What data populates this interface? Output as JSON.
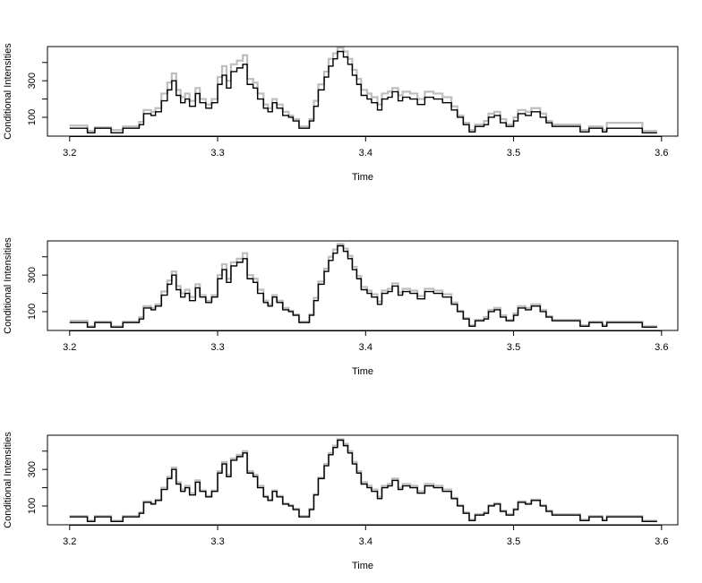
{
  "chart_data": [
    {
      "type": "step",
      "xlabel": "Time",
      "ylabel": "Conditional Intensities",
      "xlim": [
        3.185,
        3.611
      ],
      "ylim": [
        -3,
        487
      ],
      "xticks": [
        3.2,
        3.3,
        3.4,
        3.5,
        3.6
      ],
      "yticks": [
        100,
        300
      ],
      "yticks_minor": [
        200,
        400
      ],
      "x": [
        3.2,
        3.212,
        3.217,
        3.228,
        3.236,
        3.247,
        3.25,
        3.255,
        3.258,
        3.262,
        3.266,
        3.269,
        3.272,
        3.275,
        3.278,
        3.281,
        3.285,
        3.288,
        3.292,
        3.296,
        3.3,
        3.303,
        3.306,
        3.309,
        3.313,
        3.317,
        3.32,
        3.324,
        3.327,
        3.331,
        3.334,
        3.337,
        3.34,
        3.344,
        3.348,
        3.351,
        3.355,
        3.362,
        3.365,
        3.368,
        3.372,
        3.375,
        3.378,
        3.381,
        3.385,
        3.388,
        3.391,
        3.394,
        3.397,
        3.401,
        3.404,
        3.408,
        3.411,
        3.415,
        3.418,
        3.422,
        3.425,
        3.43,
        3.435,
        3.44,
        3.446,
        3.452,
        3.458,
        3.462,
        3.466,
        3.47,
        3.474,
        3.48,
        3.483,
        3.487,
        3.491,
        3.495,
        3.5,
        3.503,
        3.508,
        3.512,
        3.518,
        3.522,
        3.526,
        3.545,
        3.551,
        3.56,
        3.563,
        3.587,
        3.597
      ],
      "series": [
        {
          "color": "#bebebe",
          "values": [
            55,
            25,
            45,
            30,
            50,
            75,
            140,
            130,
            150,
            230,
            290,
            340,
            250,
            210,
            230,
            190,
            260,
            200,
            170,
            200,
            320,
            380,
            300,
            390,
            410,
            440,
            310,
            290,
            230,
            170,
            150,
            200,
            170,
            130,
            110,
            90,
            50,
            90,
            190,
            280,
            350,
            420,
            450,
            480,
            460,
            420,
            360,
            310,
            250,
            230,
            210,
            170,
            230,
            240,
            260,
            220,
            240,
            230,
            200,
            240,
            230,
            210,
            160,
            110,
            70,
            30,
            60,
            80,
            120,
            130,
            90,
            60,
            100,
            140,
            130,
            150,
            120,
            80,
            60,
            30,
            50,
            30,
            70,
            25,
            25
          ]
        },
        {
          "color": "#000000",
          "values": [
            40,
            15,
            40,
            15,
            40,
            60,
            120,
            110,
            130,
            190,
            250,
            300,
            220,
            180,
            200,
            160,
            230,
            180,
            150,
            180,
            280,
            330,
            260,
            350,
            370,
            390,
            280,
            260,
            200,
            150,
            130,
            180,
            150,
            110,
            100,
            80,
            40,
            80,
            160,
            250,
            320,
            380,
            420,
            460,
            430,
            390,
            330,
            280,
            220,
            200,
            180,
            140,
            200,
            210,
            240,
            190,
            210,
            200,
            170,
            210,
            200,
            180,
            140,
            100,
            60,
            20,
            50,
            60,
            100,
            110,
            70,
            50,
            80,
            120,
            110,
            130,
            100,
            70,
            50,
            20,
            40,
            20,
            40,
            15,
            15
          ]
        }
      ]
    },
    {
      "type": "step",
      "xlabel": "Time",
      "ylabel": "Conditional Intensities",
      "xlim": [
        3.185,
        3.611
      ],
      "ylim": [
        -3,
        487
      ],
      "xticks": [
        3.2,
        3.3,
        3.4,
        3.5,
        3.6
      ],
      "yticks": [
        100,
        300
      ],
      "yticks_minor": [
        200,
        400
      ],
      "x": [
        3.2,
        3.212,
        3.217,
        3.228,
        3.236,
        3.247,
        3.25,
        3.255,
        3.258,
        3.262,
        3.266,
        3.269,
        3.272,
        3.275,
        3.278,
        3.281,
        3.285,
        3.288,
        3.292,
        3.296,
        3.3,
        3.303,
        3.306,
        3.309,
        3.313,
        3.317,
        3.32,
        3.324,
        3.327,
        3.331,
        3.334,
        3.337,
        3.34,
        3.344,
        3.348,
        3.351,
        3.355,
        3.362,
        3.365,
        3.368,
        3.372,
        3.375,
        3.378,
        3.381,
        3.385,
        3.388,
        3.391,
        3.394,
        3.397,
        3.401,
        3.404,
        3.408,
        3.411,
        3.415,
        3.418,
        3.422,
        3.425,
        3.43,
        3.435,
        3.44,
        3.446,
        3.452,
        3.458,
        3.462,
        3.466,
        3.47,
        3.474,
        3.48,
        3.483,
        3.487,
        3.491,
        3.495,
        3.5,
        3.503,
        3.508,
        3.512,
        3.518,
        3.522,
        3.526,
        3.545,
        3.551,
        3.56,
        3.563,
        3.587,
        3.597
      ],
      "series": [
        {
          "color": "#bebebe",
          "values": [
            50,
            20,
            45,
            20,
            45,
            70,
            130,
            120,
            140,
            210,
            270,
            320,
            240,
            200,
            220,
            180,
            250,
            190,
            160,
            190,
            300,
            360,
            280,
            370,
            390,
            420,
            300,
            280,
            220,
            160,
            140,
            190,
            160,
            120,
            105,
            85,
            45,
            85,
            175,
            265,
            335,
            400,
            440,
            470,
            445,
            405,
            345,
            295,
            235,
            215,
            195,
            155,
            215,
            225,
            255,
            205,
            225,
            215,
            185,
            225,
            215,
            195,
            150,
            105,
            65,
            25,
            55,
            70,
            110,
            120,
            80,
            55,
            90,
            130,
            120,
            140,
            110,
            75,
            55,
            25,
            45,
            25,
            45,
            20,
            20
          ]
        },
        {
          "color": "#000000",
          "values": [
            40,
            15,
            40,
            15,
            40,
            60,
            120,
            110,
            130,
            190,
            250,
            300,
            220,
            180,
            200,
            160,
            230,
            180,
            150,
            180,
            280,
            330,
            260,
            350,
            370,
            390,
            280,
            260,
            200,
            150,
            130,
            180,
            150,
            110,
            100,
            80,
            40,
            80,
            160,
            250,
            320,
            380,
            420,
            460,
            430,
            390,
            330,
            280,
            220,
            200,
            180,
            140,
            200,
            210,
            240,
            190,
            210,
            200,
            170,
            210,
            200,
            180,
            140,
            100,
            60,
            20,
            50,
            60,
            100,
            110,
            70,
            50,
            80,
            120,
            110,
            130,
            100,
            70,
            50,
            20,
            40,
            20,
            40,
            15,
            15
          ]
        }
      ]
    },
    {
      "type": "step",
      "xlabel": "Time",
      "ylabel": "Conditional Intensities",
      "xlim": [
        3.185,
        3.611
      ],
      "ylim": [
        -3,
        487
      ],
      "xticks": [
        3.2,
        3.3,
        3.4,
        3.5,
        3.6
      ],
      "yticks": [
        100,
        300
      ],
      "yticks_minor": [
        200,
        400
      ],
      "x": [
        3.2,
        3.212,
        3.217,
        3.228,
        3.236,
        3.247,
        3.25,
        3.255,
        3.258,
        3.262,
        3.266,
        3.269,
        3.272,
        3.275,
        3.278,
        3.281,
        3.285,
        3.288,
        3.292,
        3.296,
        3.3,
        3.303,
        3.306,
        3.309,
        3.313,
        3.317,
        3.32,
        3.324,
        3.327,
        3.331,
        3.334,
        3.337,
        3.34,
        3.344,
        3.348,
        3.351,
        3.355,
        3.362,
        3.365,
        3.368,
        3.372,
        3.375,
        3.378,
        3.381,
        3.385,
        3.388,
        3.391,
        3.394,
        3.397,
        3.401,
        3.404,
        3.408,
        3.411,
        3.415,
        3.418,
        3.422,
        3.425,
        3.43,
        3.435,
        3.44,
        3.446,
        3.452,
        3.458,
        3.462,
        3.466,
        3.47,
        3.474,
        3.48,
        3.483,
        3.487,
        3.491,
        3.495,
        3.5,
        3.503,
        3.508,
        3.512,
        3.518,
        3.522,
        3.526,
        3.545,
        3.551,
        3.56,
        3.563,
        3.587,
        3.597
      ],
      "series": [
        {
          "color": "#bebebe",
          "values": [
            45,
            20,
            45,
            20,
            45,
            65,
            125,
            115,
            135,
            200,
            260,
            310,
            230,
            190,
            210,
            170,
            240,
            185,
            155,
            185,
            290,
            340,
            270,
            360,
            380,
            400,
            290,
            270,
            210,
            155,
            135,
            185,
            155,
            115,
            105,
            85,
            45,
            85,
            165,
            255,
            330,
            390,
            430,
            465,
            440,
            400,
            340,
            290,
            230,
            210,
            190,
            150,
            210,
            220,
            250,
            200,
            220,
            210,
            180,
            220,
            210,
            190,
            145,
            105,
            65,
            25,
            55,
            65,
            105,
            115,
            75,
            55,
            85,
            125,
            115,
            135,
            105,
            75,
            55,
            25,
            45,
            25,
            45,
            20,
            20
          ]
        },
        {
          "color": "#000000",
          "values": [
            40,
            15,
            40,
            15,
            40,
            60,
            120,
            110,
            130,
            190,
            250,
            300,
            220,
            180,
            200,
            160,
            230,
            180,
            150,
            180,
            280,
            330,
            260,
            350,
            370,
            390,
            280,
            260,
            200,
            150,
            130,
            180,
            150,
            110,
            100,
            80,
            40,
            80,
            160,
            250,
            320,
            380,
            420,
            460,
            430,
            390,
            330,
            280,
            220,
            200,
            180,
            140,
            200,
            210,
            240,
            190,
            210,
            200,
            170,
            210,
            200,
            180,
            140,
            100,
            60,
            20,
            50,
            60,
            100,
            110,
            70,
            50,
            80,
            120,
            110,
            130,
            100,
            70,
            50,
            20,
            40,
            20,
            40,
            15,
            15
          ]
        }
      ]
    }
  ]
}
